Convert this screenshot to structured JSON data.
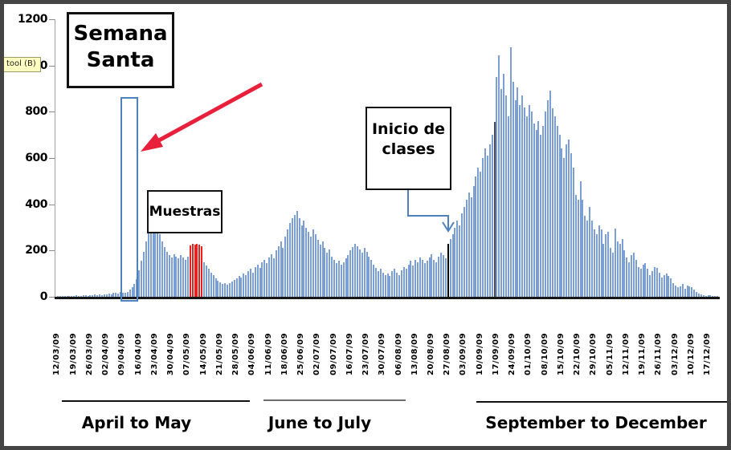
{
  "tool_chip": {
    "label": "tool (B)"
  },
  "annotations": {
    "semana_santa": {
      "line1": "Semana",
      "line2": "Santa"
    },
    "muestras": {
      "label": "Muestras"
    },
    "inicio_clases": {
      "line1": "Inicio de",
      "line2": "clases"
    }
  },
  "periods": [
    {
      "label": "April to May"
    },
    {
      "label": "June to July"
    },
    {
      "label": "September  to December"
    }
  ],
  "chart_data": {
    "type": "bar",
    "title": "",
    "xlabel": "",
    "ylabel": "",
    "ylim": [
      0,
      1200
    ],
    "yticks": [
      0,
      200,
      400,
      600,
      800,
      1000,
      1200
    ],
    "grid": false,
    "legend": "none",
    "x_tick_labels": [
      "12/03/09",
      "19/03/09",
      "26/03/09",
      "02/04/09",
      "09/04/09",
      "16/04/09",
      "23/04/09",
      "30/04/09",
      "07/05/09",
      "14/05/09",
      "21/05/09",
      "28/05/09",
      "04/06/09",
      "11/06/09",
      "18/06/09",
      "25/06/09",
      "02/07/09",
      "09/07/09",
      "16/07/09",
      "23/07/09",
      "30/07/09",
      "06/08/09",
      "13/08/09",
      "20/08/09",
      "27/08/09",
      "03/09/09",
      "10/09/09",
      "17/09/09",
      "24/09/09",
      "01/10/09",
      "08/10/09",
      "15/10/09",
      "22/10/09",
      "29/10/09",
      "05/11/09",
      "12/11/09",
      "19/11/09",
      "26/11/09",
      "03/12/09",
      "10/12/09",
      "17/12/09"
    ],
    "values": [
      3,
      2,
      4,
      3,
      2,
      5,
      4,
      3,
      6,
      5,
      4,
      7,
      6,
      5,
      8,
      6,
      9,
      7,
      10,
      8,
      12,
      10,
      14,
      12,
      16,
      18,
      15,
      20,
      18,
      18,
      22,
      30,
      40,
      55,
      75,
      115,
      155,
      195,
      240,
      290,
      330,
      350,
      335,
      300,
      270,
      240,
      215,
      195,
      180,
      170,
      185,
      175,
      165,
      180,
      170,
      160,
      175,
      222,
      230,
      226,
      230,
      224,
      218,
      150,
      135,
      120,
      105,
      92,
      80,
      70,
      62,
      55,
      60,
      52,
      58,
      65,
      72,
      80,
      90,
      85,
      100,
      95,
      110,
      120,
      105,
      130,
      140,
      125,
      150,
      160,
      145,
      170,
      185,
      165,
      200,
      220,
      240,
      210,
      260,
      290,
      320,
      340,
      355,
      370,
      340,
      310,
      330,
      300,
      280,
      260,
      290,
      270,
      245,
      225,
      240,
      210,
      190,
      205,
      175,
      160,
      145,
      155,
      140,
      150,
      165,
      180,
      200,
      215,
      230,
      220,
      205,
      190,
      210,
      195,
      175,
      160,
      140,
      125,
      110,
      120,
      105,
      95,
      100,
      90,
      110,
      120,
      105,
      95,
      115,
      130,
      120,
      140,
      155,
      135,
      160,
      150,
      170,
      160,
      145,
      155,
      170,
      185,
      160,
      150,
      175,
      190,
      180,
      165,
      228,
      250,
      270,
      300,
      330,
      310,
      360,
      390,
      420,
      450,
      430,
      480,
      520,
      560,
      540,
      600,
      640,
      610,
      660,
      700,
      755,
      950,
      1045,
      900,
      965,
      870,
      780,
      1078,
      930,
      850,
      905,
      830,
      870,
      820,
      780,
      830,
      800,
      750,
      720,
      760,
      700,
      740,
      800,
      850,
      890,
      815,
      780,
      740,
      700,
      640,
      600,
      660,
      680,
      620,
      560,
      440,
      420,
      500,
      420,
      350,
      330,
      390,
      330,
      290,
      270,
      310,
      290,
      230,
      270,
      280,
      210,
      190,
      295,
      240,
      230,
      250,
      200,
      170,
      150,
      180,
      190,
      160,
      130,
      120,
      140,
      145,
      120,
      95,
      110,
      130,
      125,
      105,
      85,
      95,
      100,
      90,
      80,
      60,
      50,
      40,
      45,
      55,
      35,
      50,
      45,
      40,
      30,
      20,
      15,
      10,
      8,
      5,
      8,
      6,
      4,
      3,
      2
    ],
    "special_bars": {
      "red_indices": [
        57,
        58,
        59,
        60,
        61,
        62
      ],
      "black_indices": [
        168
      ],
      "dark_indices": [
        188
      ]
    },
    "holy_week_outline": {
      "start_index": 28,
      "span_days": 7.5,
      "top_value": 865
    },
    "colors": {
      "bar": "#7b9fd3",
      "red": "#e32222",
      "black": "#000000",
      "dark": "#4a4a4a",
      "outline": "#4f81bd",
      "arrow_red": "#e9203c",
      "connector_blue": "#4f81bd"
    }
  }
}
